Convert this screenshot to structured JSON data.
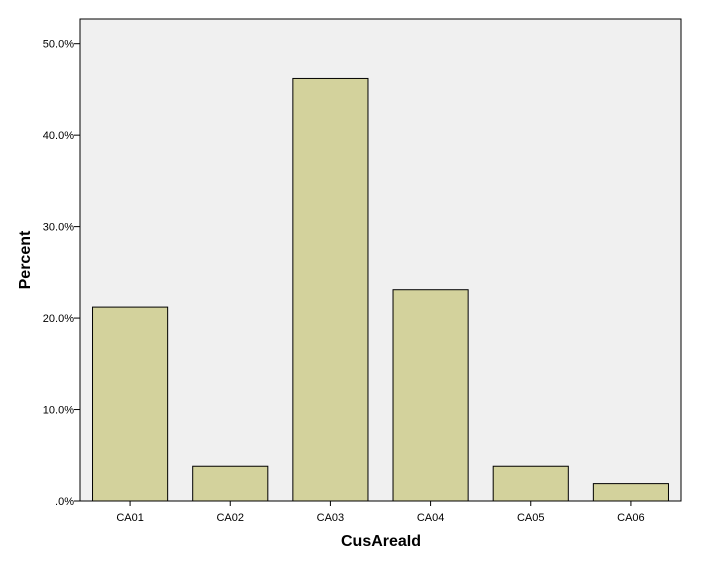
{
  "chart_data": {
    "type": "bar",
    "xlabel": "CusAreaId",
    "ylabel": "Percent",
    "categories": [
      "CA01",
      "CA02",
      "CA03",
      "CA04",
      "CA05",
      "CA06"
    ],
    "values": [
      21.2,
      3.8,
      46.2,
      23.1,
      3.8,
      1.9
    ],
    "value_unit": "%",
    "ylim": [
      0,
      52.7
    ],
    "yticks": [
      0,
      10,
      20,
      30,
      40,
      50
    ],
    "ytick_labels": [
      ".0%",
      "10.0%",
      "20.0%",
      "30.0%",
      "40.0%",
      "50.0%"
    ],
    "grid": false,
    "legend": "none",
    "colors": {
      "bar_fill": "#d3d29c",
      "bar_stroke": "#000000",
      "plot_background": "#f0f0f0",
      "page_background": "#ffffff"
    }
  }
}
